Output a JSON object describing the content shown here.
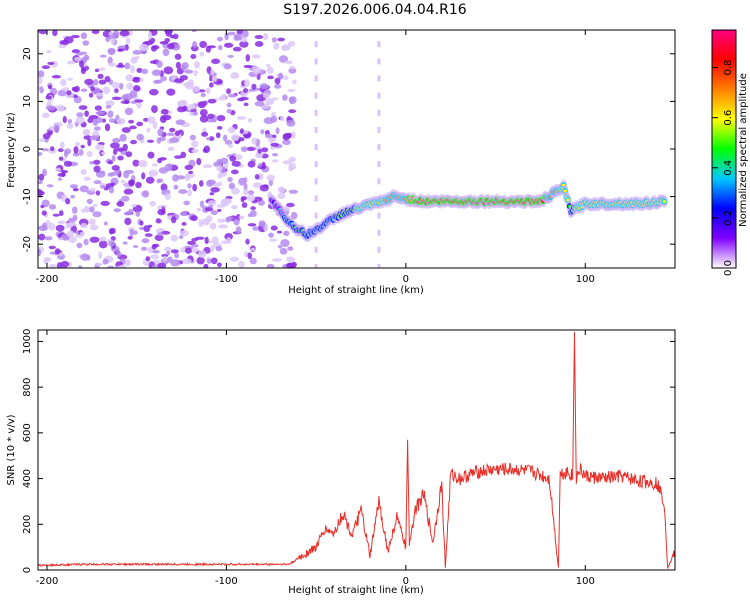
{
  "title": "S197.2026.006.04.04.R16",
  "chart_data": [
    {
      "type": "heatmap",
      "xlabel": "Height of straight line (km)",
      "ylabel": "Frequency (Hz)",
      "xlim": [
        -205,
        150
      ],
      "ylim": [
        -25,
        25
      ],
      "xticks": [
        -200,
        -100,
        0,
        100
      ],
      "yticks": [
        -20,
        -10,
        0,
        10,
        20
      ],
      "grid": false,
      "colorbar": {
        "label": "Normalized spectral amplitude",
        "range": [
          0,
          0.95
        ],
        "ticks": [
          0.0,
          0.2,
          0.4,
          0.6,
          0.8
        ],
        "tick_labels": [
          "0.0",
          "0.2",
          "0.4",
          "0.6",
          "0.8"
        ],
        "colors": [
          "#ffffff",
          "#8000ff",
          "#0000ff",
          "#00c8ff",
          "#00ff00",
          "#ffff00",
          "#ff8000",
          "#ff0000",
          "#ff0080"
        ]
      },
      "noise_region_x": [
        -205,
        -62
      ],
      "trace": [
        {
          "x": -75,
          "y": -10.5,
          "a": 0.25
        },
        {
          "x": -66,
          "y": -15,
          "a": 0.35
        },
        {
          "x": -60,
          "y": -17,
          "a": 0.45
        },
        {
          "x": -55,
          "y": -18,
          "a": 0.4
        },
        {
          "x": -50,
          "y": -17,
          "a": 0.35
        },
        {
          "x": -42,
          "y": -15,
          "a": 0.4
        },
        {
          "x": -35,
          "y": -13.5,
          "a": 0.45
        },
        {
          "x": -27,
          "y": -12.5,
          "a": 0.55
        },
        {
          "x": -18,
          "y": -11.5,
          "a": 0.6
        },
        {
          "x": -12,
          "y": -11,
          "a": 0.65
        },
        {
          "x": -7,
          "y": -10,
          "a": 0.7
        },
        {
          "x": 0,
          "y": -10.5,
          "a": 0.75
        },
        {
          "x": 10,
          "y": -11,
          "a": 0.8
        },
        {
          "x": 25,
          "y": -11,
          "a": 0.85
        },
        {
          "x": 45,
          "y": -11,
          "a": 0.95
        },
        {
          "x": 60,
          "y": -11,
          "a": 0.85
        },
        {
          "x": 75,
          "y": -11,
          "a": 0.8
        },
        {
          "x": 88,
          "y": -8,
          "a": 0.6
        },
        {
          "x": 92,
          "y": -13,
          "a": 0.5
        },
        {
          "x": 100,
          "y": -11.5,
          "a": 0.65
        },
        {
          "x": 115,
          "y": -11.5,
          "a": 0.6
        },
        {
          "x": 130,
          "y": -11.5,
          "a": 0.6
        },
        {
          "x": 145,
          "y": -11,
          "a": 0.55
        }
      ]
    },
    {
      "type": "line",
      "xlabel": "Height of straight line (km)",
      "ylabel": "SNR (10 * v/v)",
      "xlim": [
        -205,
        150
      ],
      "ylim": [
        0,
        1050
      ],
      "xticks": [
        -200,
        -100,
        0,
        100
      ],
      "yticks": [
        0,
        200,
        400,
        600,
        800,
        1000
      ],
      "color": "#e8302a",
      "grid": false,
      "series": [
        {
          "x": [
            -205,
            -180,
            -150,
            -120,
            -90,
            -65,
            -50,
            -45,
            -40,
            -35,
            -30,
            -25,
            -20,
            -15,
            -10,
            -5,
            0,
            1,
            2,
            5,
            10,
            15,
            20,
            22,
            25,
            30,
            40,
            50,
            60,
            70,
            80,
            85,
            86,
            90,
            93,
            94,
            95,
            97,
            100,
            110,
            120,
            130,
            140,
            144,
            146,
            150
          ],
          "y": [
            20,
            25,
            25,
            25,
            25,
            25,
            100,
            180,
            160,
            250,
            150,
            260,
            60,
            300,
            80,
            230,
            100,
            540,
            120,
            260,
            330,
            120,
            380,
            10,
            420,
            400,
            430,
            440,
            440,
            430,
            400,
            10,
            420,
            430,
            410,
            1040,
            400,
            440,
            410,
            400,
            410,
            390,
            380,
            300,
            10,
            80
          ]
        }
      ]
    }
  ]
}
